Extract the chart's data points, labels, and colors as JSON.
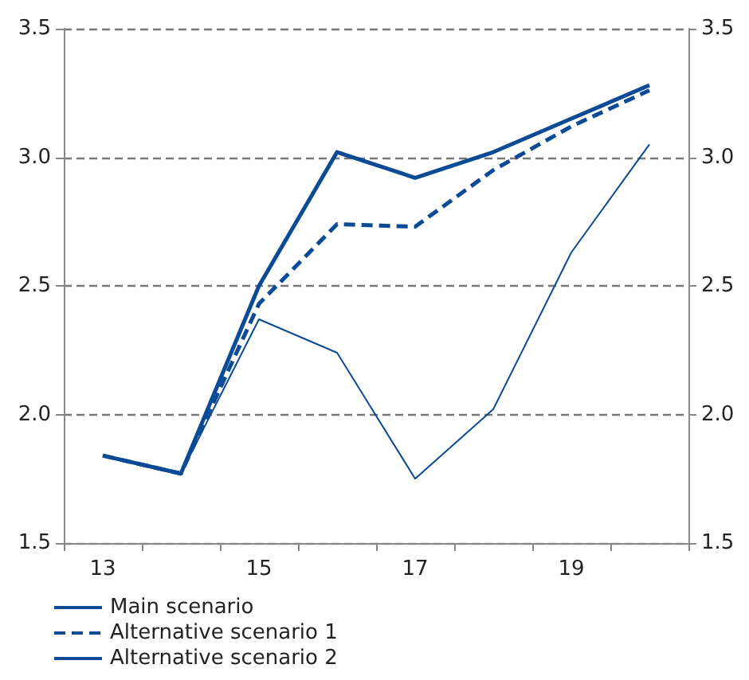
{
  "chart_data": {
    "type": "line",
    "categories": [
      "13",
      null,
      "15",
      null,
      "17",
      null,
      "19",
      null
    ],
    "series": [
      {
        "name": "Main scenario",
        "color": "#0b4a94",
        "line_style": "solid",
        "values": [
          1.84,
          1.77,
          2.5,
          3.02,
          2.92,
          3.02,
          3.15,
          3.28
        ]
      },
      {
        "name": "Alternative scenario 1",
        "color": "#0b4a94",
        "line_style": "dashed",
        "values": [
          1.84,
          1.77,
          2.43,
          2.74,
          2.73,
          2.95,
          3.12,
          3.26
        ]
      },
      {
        "name": "Alternative scenario 2",
        "color": "#0b4a94",
        "line_style": "solid",
        "values": [
          1.84,
          1.77,
          2.37,
          2.24,
          1.75,
          2.02,
          2.63,
          3.05
        ]
      }
    ],
    "ylim": [
      1.5,
      3.5
    ],
    "yticks": [
      1.5,
      {
        "value": 2,
        "label": "2.0"
      },
      2.5,
      {
        "value": 3,
        "label": "3.0"
      },
      3.5
    ],
    "y2lim": [
      1.5,
      3.5
    ],
    "y2ticks": [
      1.5,
      {
        "value": 2,
        "label": "2.0"
      },
      2.5,
      {
        "value": 3,
        "label": "3.0"
      },
      3.5
    ],
    "grid": "y",
    "legend": "bottom left",
    "marker": "none"
  }
}
